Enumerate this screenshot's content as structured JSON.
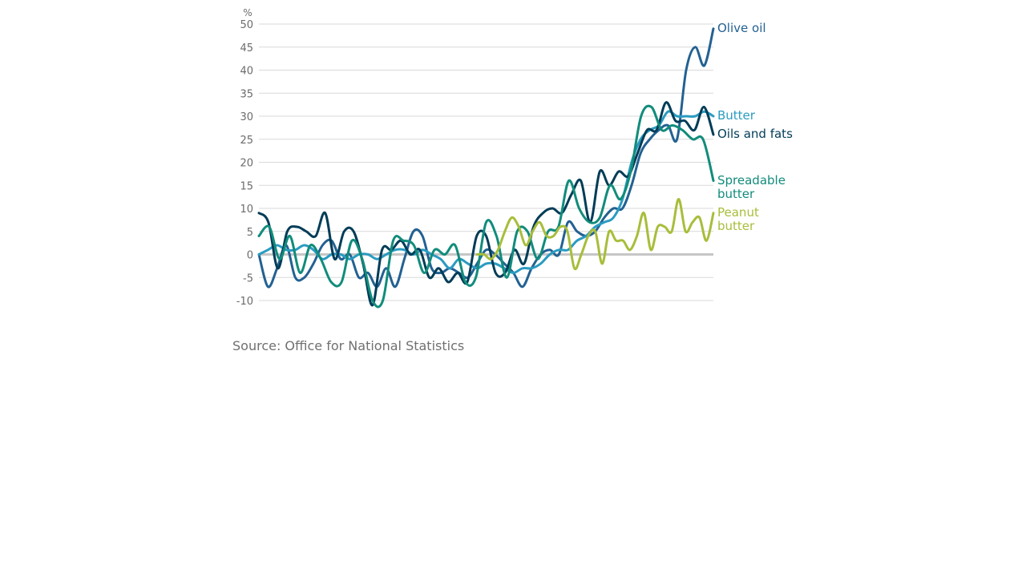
{
  "chart_data": {
    "type": "line",
    "ylabel": "%",
    "ylim": [
      -10,
      50
    ],
    "yticks": [
      50,
      45,
      40,
      35,
      30,
      25,
      20,
      15,
      10,
      5,
      0,
      -5,
      -10
    ],
    "grid": true,
    "legend": "direct labels at right end of lines",
    "series": [
      {
        "name": "Olive oil",
        "label_lines": [
          "Olive oil"
        ],
        "color": "#236192",
        "values": [
          0,
          -7,
          -3,
          2,
          -5,
          -5,
          -2,
          2,
          3,
          -1,
          0,
          -5,
          -4,
          -7,
          -3,
          -7,
          -1,
          5,
          4,
          -3,
          -4,
          -3,
          -4,
          -5,
          -2,
          1,
          0,
          -2,
          -4,
          -7,
          -3,
          0,
          1,
          0,
          7,
          5,
          4,
          5,
          8,
          10,
          10,
          15,
          22,
          25,
          27,
          28,
          25,
          40,
          45,
          41,
          49
        ]
      },
      {
        "name": "Butter",
        "label_lines": [
          "Butter"
        ],
        "color": "#2a9bc1",
        "values": [
          0,
          1,
          2,
          1,
          1,
          2,
          1,
          -1,
          0,
          0,
          -1,
          0,
          0,
          -1,
          0,
          1,
          1,
          0,
          1,
          0,
          -1,
          -3,
          -1,
          -2,
          -3,
          -2,
          -2,
          -3,
          -4,
          -3,
          -3,
          -2,
          0,
          1,
          1,
          3,
          4,
          6,
          7,
          8,
          12,
          20,
          25,
          27,
          28,
          31,
          30,
          30,
          30,
          31,
          30
        ]
      },
      {
        "name": "Oils and fats",
        "label_lines": [
          "Oils and fats"
        ],
        "color": "#003c57",
        "values": [
          9,
          7,
          -3,
          5,
          6,
          5,
          4,
          9,
          -1,
          5,
          5,
          -2,
          -11,
          1,
          1,
          3,
          0,
          1,
          -5,
          -3,
          -6,
          -4,
          -6,
          4,
          4,
          -4,
          -4,
          1,
          -2,
          6,
          9,
          10,
          9,
          13,
          16,
          7,
          18,
          15,
          18,
          17,
          22,
          27,
          27,
          33,
          29,
          29,
          27,
          32,
          26
        ]
      },
      {
        "name": "Spreadable butter",
        "label_lines": [
          "Spreadable",
          "butter"
        ],
        "color": "#118c7b",
        "values": [
          4,
          6,
          -1,
          4,
          -4,
          2,
          -1,
          -6,
          -6,
          3,
          -1,
          -10,
          -10,
          3,
          3,
          2,
          -4,
          1,
          0,
          2,
          -6,
          -5,
          7,
          4,
          -5,
          5,
          5,
          -1,
          5,
          6,
          16,
          10,
          7,
          8,
          15,
          12,
          18,
          30,
          32,
          27,
          28,
          27,
          25,
          25,
          16
        ]
      },
      {
        "name": "Peanut butter",
        "label_lines": [
          "Peanut",
          "butter"
        ],
        "color": "#a8bd3a",
        "values": [
          0,
          0,
          -1,
          1,
          5,
          8,
          6,
          2,
          5,
          7,
          4,
          4,
          6,
          5,
          -3,
          0,
          4,
          5,
          -2,
          5,
          3,
          3,
          1,
          4,
          9,
          1,
          6,
          6,
          5,
          12,
          5,
          7,
          8,
          3,
          9
        ],
        "x_start": 24
      }
    ]
  },
  "source": "Source: Office for National Statistics"
}
